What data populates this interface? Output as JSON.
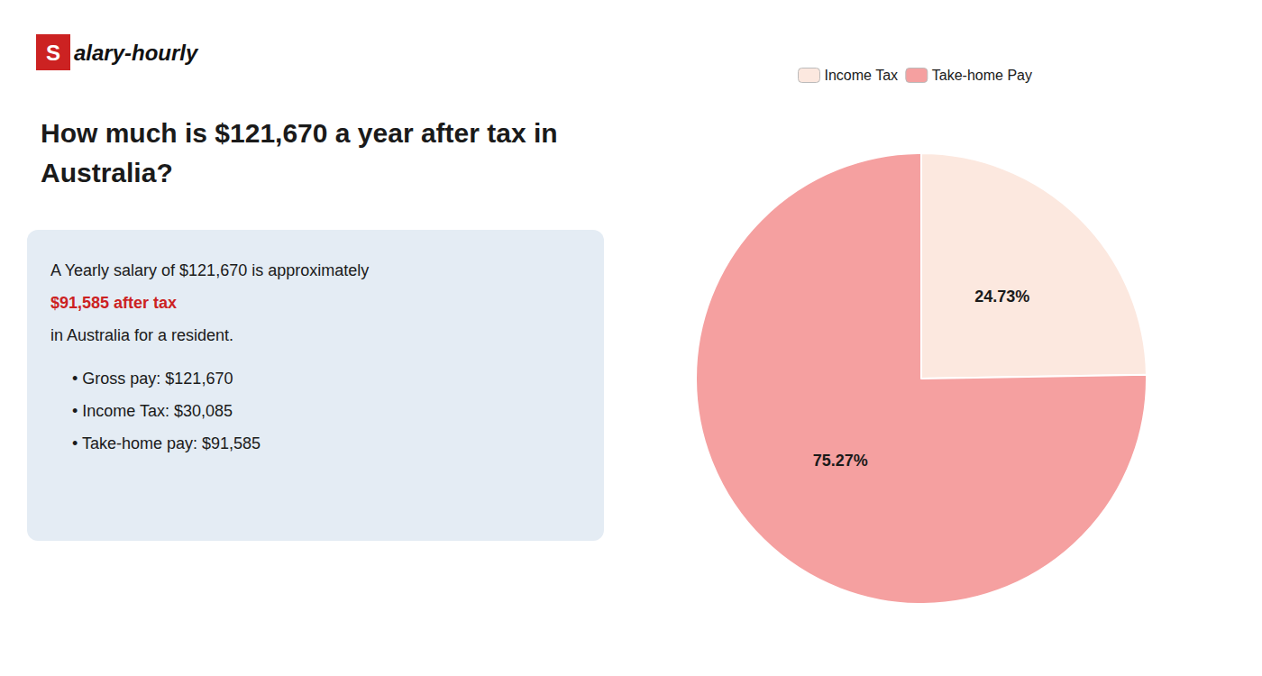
{
  "chart_data": {
    "type": "pie",
    "title": "How much is $121,670 a year after tax in\nAustralia?",
    "categories": [
      "Income Tax",
      "Take-home Pay"
    ],
    "values": [
      24.73,
      75.27
    ],
    "value_labels": [
      "24.73%",
      "75.27%"
    ],
    "colors": [
      "#fce8df",
      "#f5a0a0"
    ],
    "data_labels": true,
    "legend": "top",
    "annotations": [
      {
        "text": "S",
        "color": "#cc2222"
      },
      {
        "text": "alary-hourly"
      },
      {
        "text": "A Yearly salary of $121,670 is approximately"
      },
      {
        "text": "$91,585 after tax",
        "color": "#cc2222"
      },
      {
        "text": "in Australia for a resident."
      },
      {
        "text": "• Gross pay: $121,670"
      },
      {
        "text": "• Income Tax: $30,085"
      },
      {
        "text": "• Take-home pay: $91,585"
      }
    ]
  }
}
